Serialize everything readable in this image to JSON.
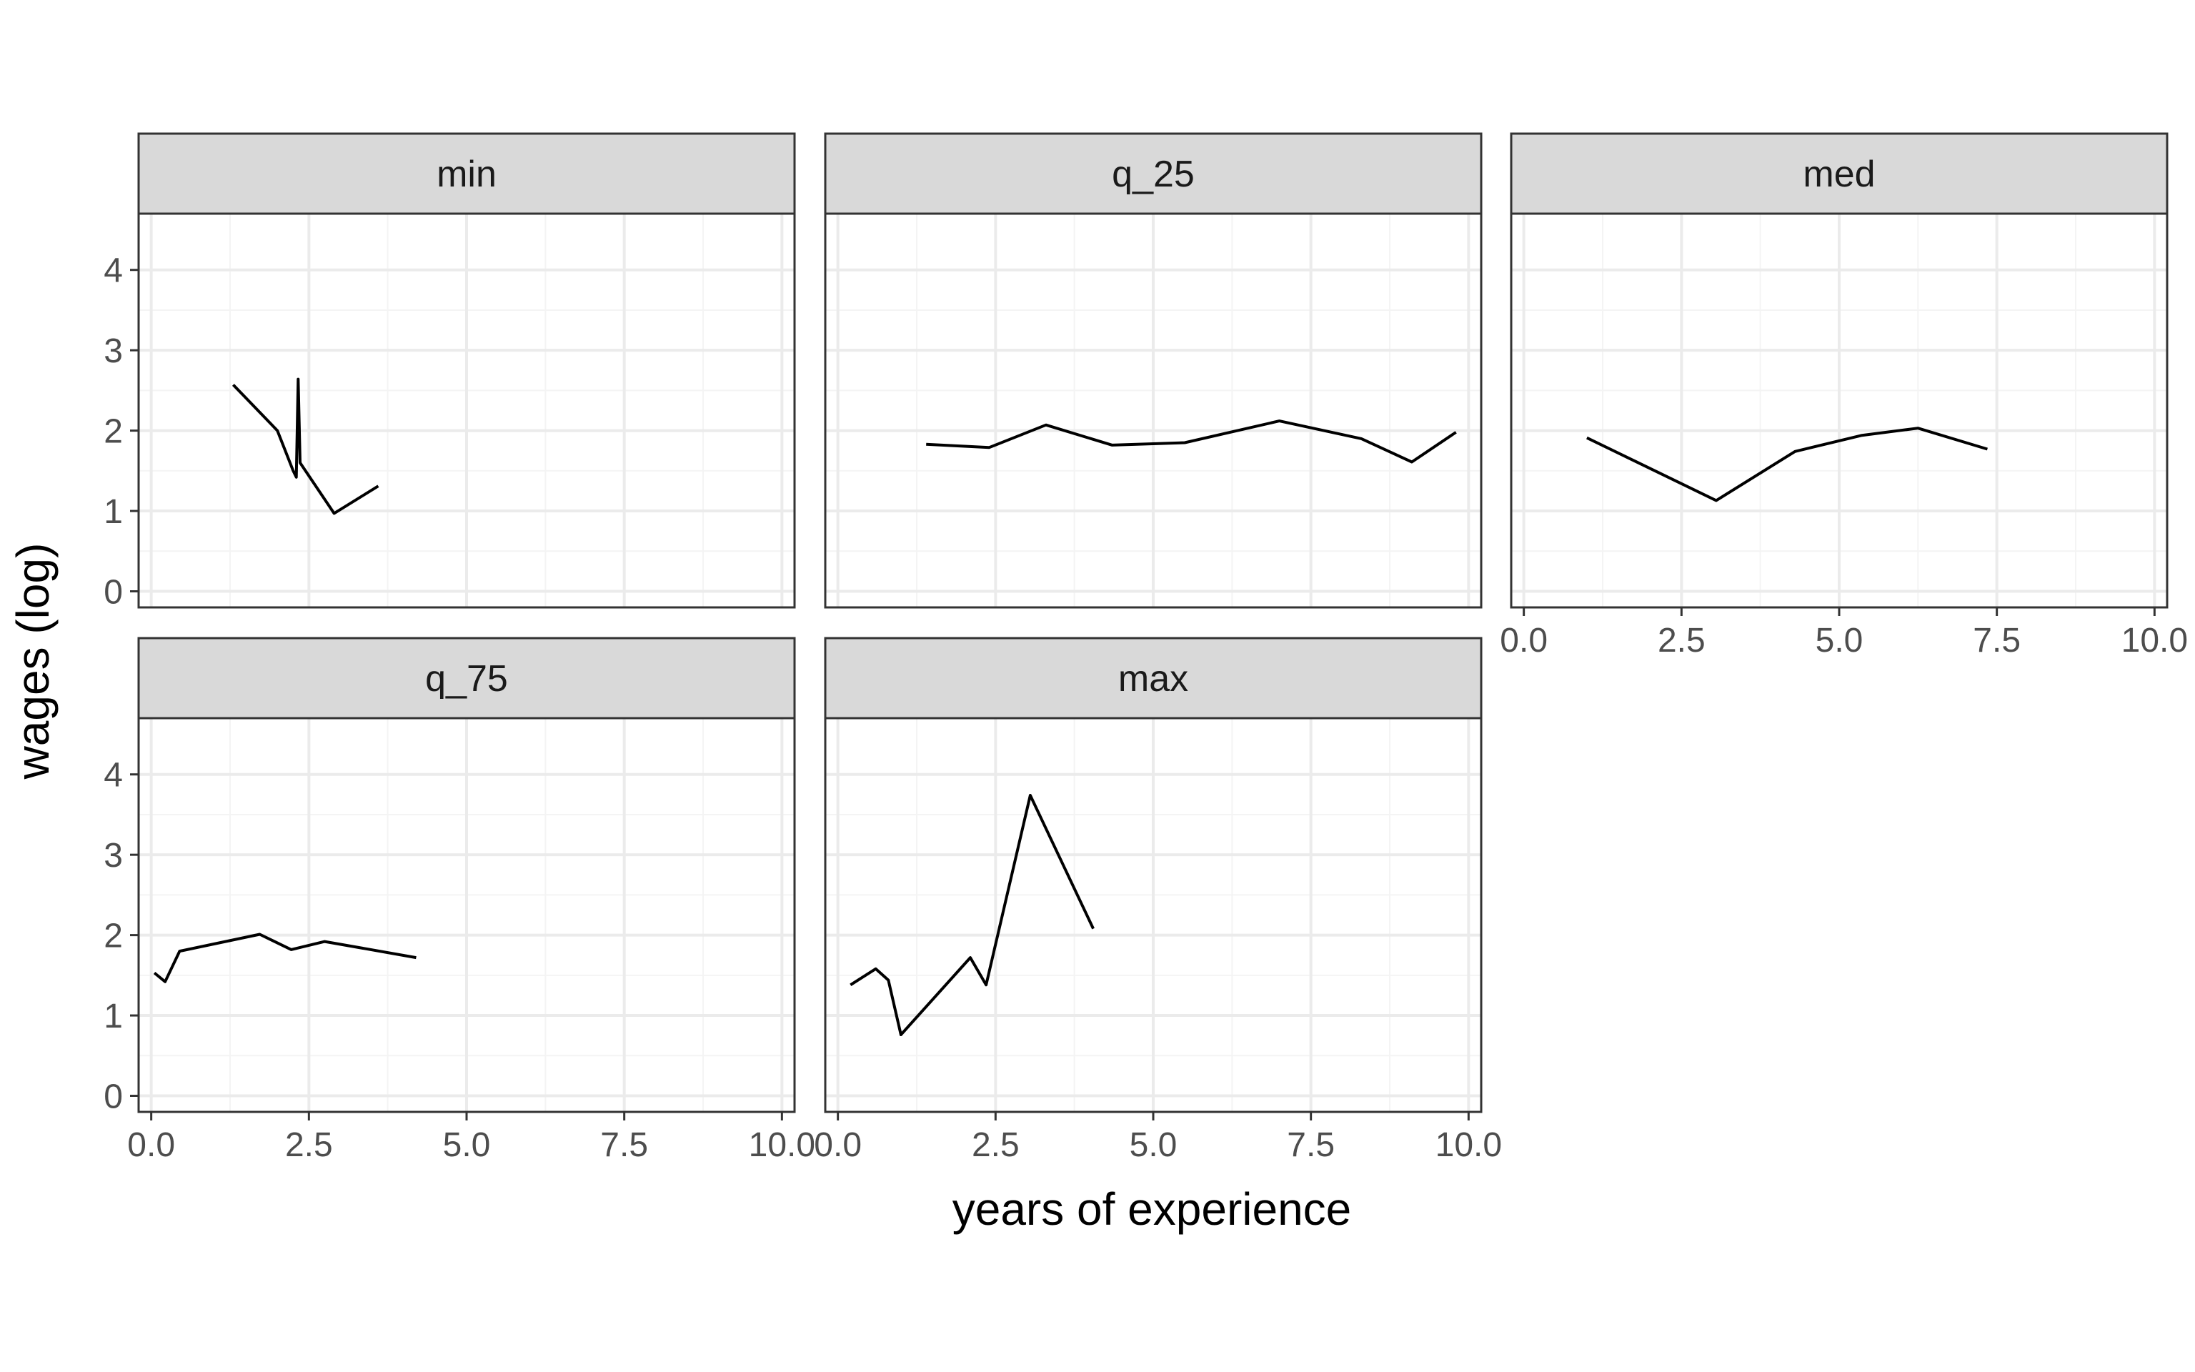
{
  "chart_data": {
    "type": "line",
    "layout": "facet_wrap",
    "xlabel": "years of experience",
    "ylabel": "wages (log)",
    "xlim": [
      -0.2,
      10.2
    ],
    "ylim": [
      -0.2,
      4.7
    ],
    "x_ticks": [
      0.0,
      2.5,
      5.0,
      7.5,
      10.0
    ],
    "x_tick_labels": [
      "0.0",
      "2.5",
      "5.0",
      "7.5",
      "10.0"
    ],
    "y_ticks": [
      0,
      1,
      2,
      3,
      4
    ],
    "y_tick_labels": [
      "0",
      "1",
      "2",
      "3",
      "4"
    ],
    "grid": true,
    "theme": "bw",
    "colors": {
      "line": "#000000",
      "strip_fill": "#d9d9d9",
      "panel_border": "#333333",
      "grid_major": "#ebebeb",
      "grid_minor": "#f4f4f4"
    },
    "facets": [
      {
        "label": "min",
        "x": [
          1.3,
          2.0,
          2.25,
          2.3,
          2.33,
          2.36,
          2.9,
          3.6
        ],
        "y": [
          2.57,
          2.0,
          1.5,
          1.42,
          2.64,
          1.6,
          0.97,
          1.31
        ]
      },
      {
        "label": "q_25",
        "x": [
          1.4,
          2.4,
          3.3,
          4.35,
          5.5,
          7.0,
          8.3,
          9.1,
          9.8
        ],
        "y": [
          1.83,
          1.79,
          2.07,
          1.82,
          1.85,
          2.12,
          1.9,
          1.61,
          1.98
        ]
      },
      {
        "label": "med",
        "x": [
          1.0,
          3.05,
          4.3,
          5.35,
          6.25,
          7.35
        ],
        "y": [
          1.91,
          1.13,
          1.74,
          1.94,
          2.03,
          1.77
        ]
      },
      {
        "label": "q_75",
        "x": [
          0.05,
          0.22,
          0.45,
          1.72,
          2.22,
          2.75,
          4.2
        ],
        "y": [
          1.53,
          1.42,
          1.8,
          2.01,
          1.82,
          1.92,
          1.72
        ]
      },
      {
        "label": "max",
        "x": [
          0.2,
          0.6,
          0.8,
          1.0,
          2.1,
          2.35,
          3.05,
          4.05
        ],
        "y": [
          1.38,
          1.58,
          1.44,
          0.76,
          1.72,
          1.38,
          3.74,
          2.08
        ]
      }
    ]
  }
}
